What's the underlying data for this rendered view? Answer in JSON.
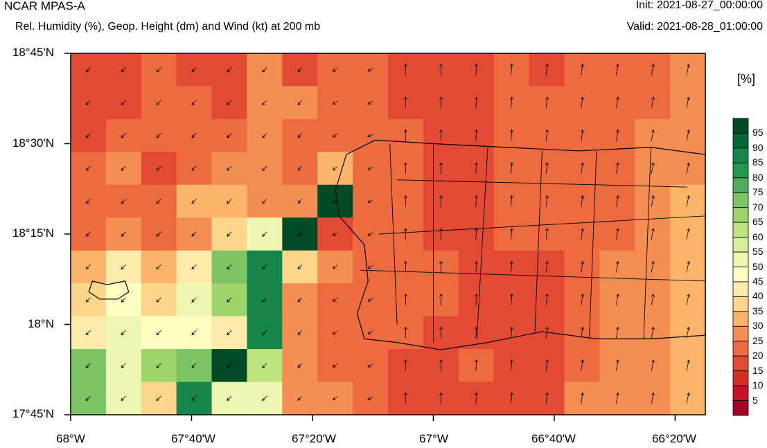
{
  "header": {
    "title": "NCAR MPAS-A",
    "subtitle": "Rel. Humidity (%), Geop. Height (dm) and Wind (kt) at 200 mb",
    "init": "Init: 2021-08-27_00:00:00",
    "valid": "Valid: 2021-08-28_01:00:00"
  },
  "map": {
    "lat_labels": [
      "18°45'N",
      "18°30'N",
      "18°15'N",
      "18°N",
      "17°45'N"
    ],
    "lon_labels": [
      "68°W",
      "67°40'W",
      "67°20'W",
      "67°W",
      "66°40'W",
      "66°20'W"
    ],
    "lat_range": [
      17.75,
      18.75
    ],
    "lon_range": [
      -68.0,
      -66.25
    ],
    "rh_grid": [
      [
        15,
        15,
        20,
        15,
        15,
        25,
        15,
        20,
        20,
        15,
        15,
        15,
        20,
        15,
        20,
        20,
        20,
        25
      ],
      [
        15,
        15,
        20,
        20,
        15,
        25,
        25,
        20,
        20,
        15,
        15,
        15,
        20,
        20,
        20,
        20,
        20,
        25
      ],
      [
        15,
        20,
        20,
        20,
        20,
        25,
        20,
        20,
        20,
        20,
        15,
        15,
        20,
        20,
        20,
        20,
        25,
        25
      ],
      [
        20,
        25,
        15,
        20,
        25,
        25,
        20,
        30,
        20,
        20,
        15,
        15,
        20,
        20,
        20,
        20,
        25,
        25
      ],
      [
        20,
        20,
        20,
        30,
        30,
        25,
        25,
        95,
        20,
        20,
        15,
        15,
        20,
        20,
        20,
        20,
        25,
        30
      ],
      [
        20,
        25,
        20,
        25,
        35,
        50,
        95,
        15,
        20,
        20,
        15,
        15,
        20,
        20,
        20,
        20,
        25,
        30
      ],
      [
        30,
        40,
        30,
        40,
        70,
        85,
        35,
        25,
        20,
        20,
        20,
        15,
        15,
        15,
        20,
        25,
        25,
        30
      ],
      [
        35,
        45,
        35,
        50,
        65,
        85,
        25,
        20,
        20,
        20,
        20,
        15,
        15,
        15,
        20,
        25,
        25,
        30
      ],
      [
        40,
        50,
        45,
        45,
        40,
        85,
        25,
        20,
        20,
        20,
        15,
        15,
        15,
        15,
        20,
        25,
        25,
        30
      ],
      [
        70,
        50,
        65,
        70,
        95,
        60,
        25,
        20,
        20,
        15,
        15,
        20,
        15,
        15,
        20,
        25,
        25,
        30
      ],
      [
        70,
        50,
        35,
        85,
        50,
        50,
        25,
        25,
        20,
        15,
        15,
        15,
        15,
        15,
        25,
        25,
        25,
        30
      ]
    ],
    "wind_direction": "light northeasterly flow in the west, southerly flow in the east",
    "coastline": "Puerto Rico with municipal boundaries; Mona Island"
  },
  "colorbar": {
    "unit_label": "[%]",
    "levels": [
      "5",
      "10",
      "15",
      "20",
      "25",
      "30",
      "35",
      "40",
      "45",
      "50",
      "55",
      "60",
      "65",
      "70",
      "75",
      "80",
      "85",
      "90",
      "95"
    ],
    "colors": [
      "#a50026",
      "#c1122a",
      "#d42f27",
      "#e34a33",
      "#ee6a3f",
      "#f58e52",
      "#fbb46a",
      "#fdd58b",
      "#fdebac",
      "#feffc0",
      "#eef7b1",
      "#d6ef9a",
      "#bde47f",
      "#9fd46b",
      "#7dc464",
      "#4cad5a",
      "#239b4f",
      "#15854a",
      "#006837",
      "#004a25"
    ]
  }
}
